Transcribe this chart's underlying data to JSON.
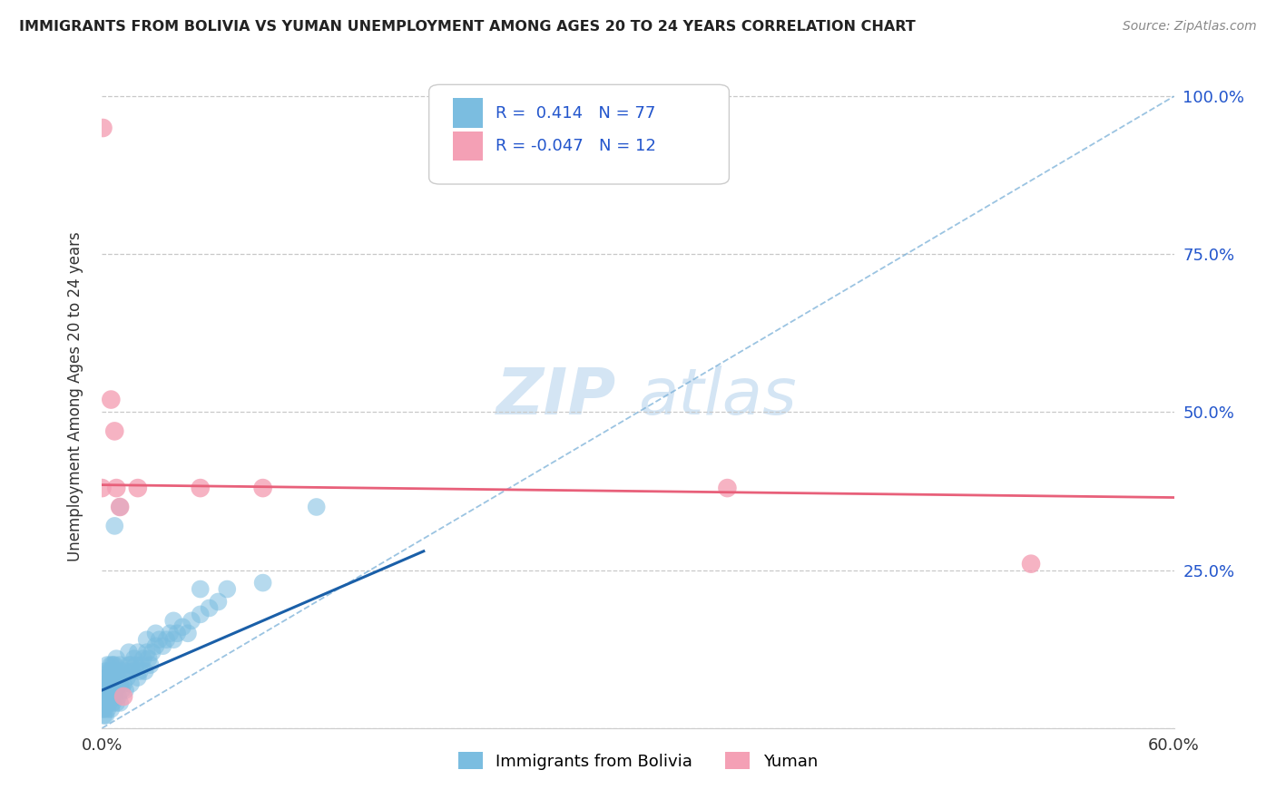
{
  "title": "IMMIGRANTS FROM BOLIVIA VS YUMAN UNEMPLOYMENT AMONG AGES 20 TO 24 YEARS CORRELATION CHART",
  "source": "Source: ZipAtlas.com",
  "ylabel_label": "Unemployment Among Ages 20 to 24 years",
  "y_ticks": [
    0.0,
    0.25,
    0.5,
    0.75,
    1.0
  ],
  "xlim": [
    0.0,
    0.6
  ],
  "ylim": [
    0.0,
    1.05
  ],
  "legend_label1": "Immigrants from Bolivia",
  "legend_label2": "Yuman",
  "color_blue": "#7bbde0",
  "color_pink": "#f4a0b5",
  "trendline_blue": "#1a5fa8",
  "trendline_pink": "#e8607a",
  "refline_color": "#7ab0d8",
  "watermark_zip": "ZIP",
  "watermark_atlas": "atlas",
  "background_color": "#ffffff",
  "grid_color": "#c8c8c8",
  "blue_scatter_x": [
    0.0005,
    0.001,
    0.001,
    0.001,
    0.002,
    0.002,
    0.002,
    0.002,
    0.003,
    0.003,
    0.003,
    0.003,
    0.003,
    0.004,
    0.004,
    0.004,
    0.005,
    0.005,
    0.005,
    0.005,
    0.006,
    0.006,
    0.006,
    0.007,
    0.007,
    0.007,
    0.008,
    0.008,
    0.008,
    0.008,
    0.009,
    0.009,
    0.01,
    0.01,
    0.01,
    0.011,
    0.011,
    0.012,
    0.013,
    0.013,
    0.014,
    0.015,
    0.016,
    0.016,
    0.017,
    0.018,
    0.019,
    0.02,
    0.02,
    0.021,
    0.022,
    0.023,
    0.024,
    0.025,
    0.026,
    0.027,
    0.028,
    0.03,
    0.032,
    0.034,
    0.036,
    0.038,
    0.04,
    0.042,
    0.045,
    0.048,
    0.05,
    0.055,
    0.06,
    0.065,
    0.001,
    0.001,
    0.002,
    0.003,
    0.004,
    0.005,
    0.006,
    0.055,
    0.07,
    0.09,
    0.03,
    0.04,
    0.025,
    0.015,
    0.01,
    0.007,
    0.12
  ],
  "blue_scatter_y": [
    0.03,
    0.02,
    0.04,
    0.06,
    0.02,
    0.05,
    0.07,
    0.09,
    0.03,
    0.05,
    0.06,
    0.08,
    0.1,
    0.04,
    0.07,
    0.09,
    0.03,
    0.06,
    0.08,
    0.1,
    0.04,
    0.07,
    0.09,
    0.05,
    0.08,
    0.1,
    0.04,
    0.06,
    0.09,
    0.11,
    0.05,
    0.08,
    0.04,
    0.07,
    0.1,
    0.06,
    0.09,
    0.07,
    0.06,
    0.09,
    0.08,
    0.1,
    0.07,
    0.1,
    0.09,
    0.11,
    0.1,
    0.08,
    0.12,
    0.09,
    0.1,
    0.11,
    0.09,
    0.12,
    0.11,
    0.1,
    0.12,
    0.13,
    0.14,
    0.13,
    0.14,
    0.15,
    0.14,
    0.15,
    0.16,
    0.15,
    0.17,
    0.18,
    0.19,
    0.2,
    0.03,
    0.05,
    0.06,
    0.08,
    0.07,
    0.09,
    0.1,
    0.22,
    0.22,
    0.23,
    0.15,
    0.17,
    0.14,
    0.12,
    0.35,
    0.32,
    0.35
  ],
  "pink_scatter_x": [
    0.0,
    0.0005,
    0.005,
    0.007,
    0.008,
    0.01,
    0.012,
    0.02,
    0.055,
    0.09,
    0.35,
    0.52
  ],
  "pink_scatter_y": [
    0.38,
    0.95,
    0.52,
    0.47,
    0.38,
    0.35,
    0.05,
    0.38,
    0.38,
    0.38,
    0.38,
    0.26
  ],
  "blue_trend_x0": 0.0,
  "blue_trend_y0": 0.06,
  "blue_trend_x1": 0.18,
  "blue_trend_y1": 0.28,
  "pink_trend_x0": 0.0,
  "pink_trend_y0": 0.385,
  "pink_trend_x1": 0.6,
  "pink_trend_y1": 0.365
}
